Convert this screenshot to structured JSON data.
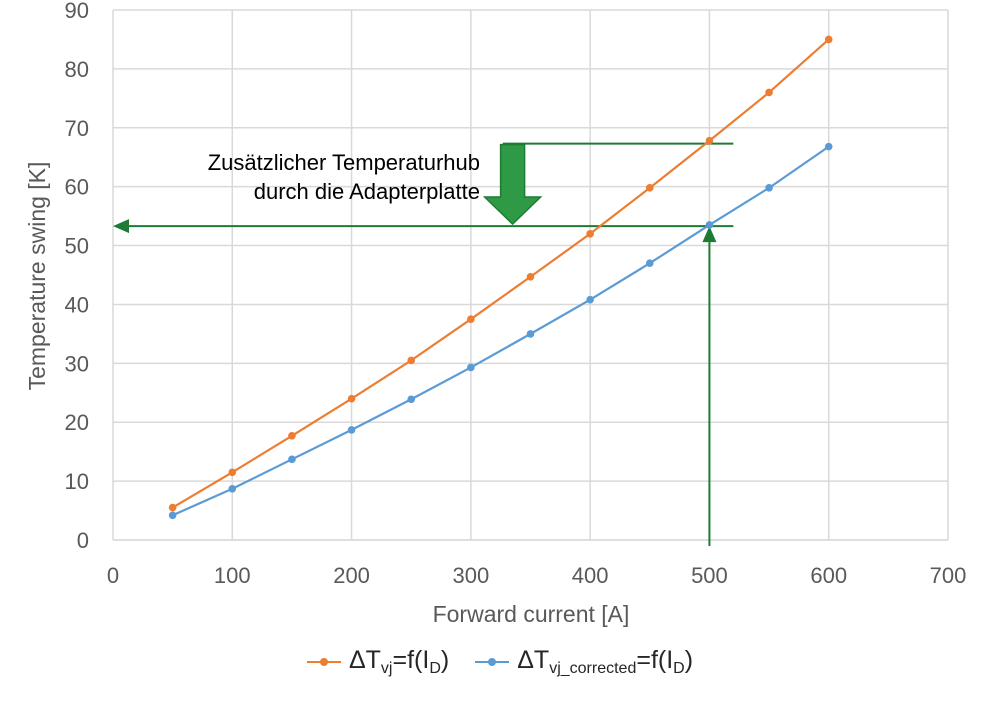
{
  "chart_data": {
    "type": "line",
    "xlabel": "Forward current [A]",
    "ylabel": "Temperature swing [K]",
    "xlim": [
      0,
      700
    ],
    "ylim": [
      0,
      90
    ],
    "xticks": [
      "0",
      "100",
      "200",
      "300",
      "400",
      "500",
      "600",
      "700"
    ],
    "yticks": [
      "0",
      "10",
      "20",
      "30",
      "40",
      "50",
      "60",
      "70",
      "80",
      "90"
    ],
    "grid": true,
    "legend_position": "bottom",
    "x": [
      50,
      100,
      150,
      200,
      250,
      300,
      350,
      400,
      450,
      500,
      550,
      600
    ],
    "series": [
      {
        "name": "ΔTvj=f(ID)",
        "name_parts": {
          "main": "ΔT",
          "sub1": "vj",
          "mid": "=f(I",
          "sub2": "D",
          "end": ")"
        },
        "color": "#ED7D31",
        "values": [
          5.5,
          11.5,
          17.7,
          24.0,
          30.5,
          37.5,
          44.7,
          52.0,
          59.8,
          67.8,
          76.0,
          85.0
        ]
      },
      {
        "name": "ΔTvj_corrected=f(ID)",
        "name_parts": {
          "main": "ΔT",
          "sub1": "vj_corrected",
          "mid": "=f(I",
          "sub2": "D",
          "end": ")"
        },
        "color": "#5B9BD5",
        "values": [
          4.2,
          8.7,
          13.7,
          18.7,
          23.9,
          29.3,
          35.0,
          40.8,
          47.0,
          53.5,
          59.8,
          66.8
        ]
      }
    ],
    "annotations": {
      "text_line1": "Zusätzlicher Temperaturhub",
      "text_line2": "durch die Adapterplatte",
      "color": "#1E7B34",
      "arrow_fill": "#2E9A45",
      "upper_level": 67.3,
      "lower_level": 53.3,
      "line_x_start": 320,
      "line_x_end": 515,
      "left_arrow_from_x": 515,
      "left_arrow_to_x": 0,
      "vertical_arrow_x": 500,
      "vertical_arrow_from_y": 0,
      "vertical_arrow_to_y": 53.3,
      "down_arrow_x": 335
    }
  }
}
